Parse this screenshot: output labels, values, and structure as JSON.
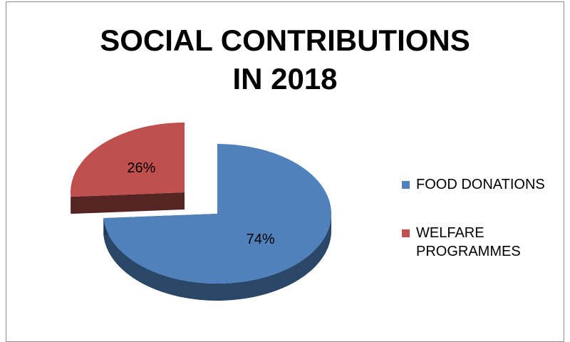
{
  "chart_data": {
    "type": "pie",
    "title_lines": [
      "SOCIAL CONTRIBUTIONS",
      "IN 2018"
    ],
    "categories": [
      "FOOD DONATIONS",
      "WELFARE PROGRAMMES"
    ],
    "values": [
      74,
      26
    ],
    "data_labels": [
      "74%",
      "26%"
    ],
    "colors": [
      "#4f81bd",
      "#c0504d"
    ],
    "legend_position": "right",
    "exploded_slice": "WELFARE PROGRAMMES",
    "style": "3d"
  }
}
